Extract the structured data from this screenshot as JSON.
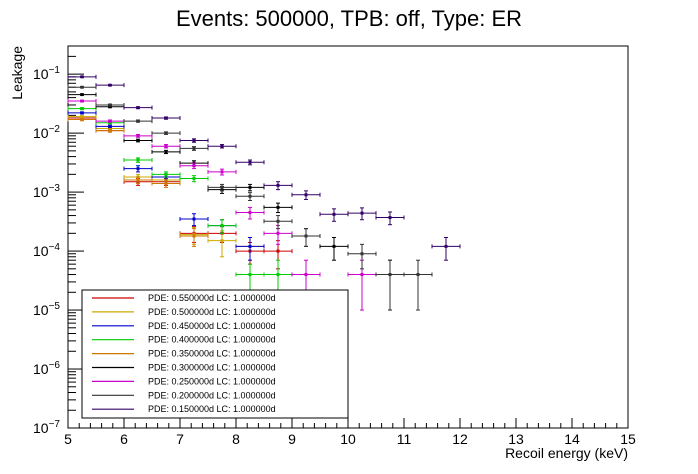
{
  "chart_data": {
    "type": "scatter",
    "title": "Events: 500000, TPB: off, Type: ER",
    "xlabel": "Recoil energy (keV)",
    "ylabel": "Leakage",
    "xlim": [
      5,
      15
    ],
    "ylim": [
      1e-07,
      0.3
    ],
    "yscale": "log",
    "x_ticks": [
      "5",
      "6",
      "7",
      "8",
      "9",
      "10",
      "11",
      "12",
      "13",
      "14",
      "15"
    ],
    "y_ticks": [
      {
        "base": "10",
        "exp": "−7",
        "value": 1e-07
      },
      {
        "base": "10",
        "exp": "−6",
        "value": 1e-06
      },
      {
        "base": "10",
        "exp": "−5",
        "value": 1e-05
      },
      {
        "base": "10",
        "exp": "−4",
        "value": 0.0001
      },
      {
        "base": "10",
        "exp": "−3",
        "value": 0.001
      },
      {
        "base": "10",
        "exp": "−2",
        "value": 0.01
      },
      {
        "base": "10",
        "exp": "−1",
        "value": 0.1
      }
    ],
    "grid": false,
    "legend_position": "bottom-left",
    "series": [
      {
        "name": "PDE: 0.550000d LC: 1.000000d",
        "color": "#cc0000",
        "points": [
          [
            5.25,
            0.018,
            0.0008
          ],
          [
            5.75,
            0.011,
            0.0006
          ],
          [
            6.25,
            0.0015,
            0.0002
          ],
          [
            6.75,
            0.0015,
            0.0002
          ],
          [
            7.25,
            0.0002,
            6e-05
          ],
          [
            7.75,
            0.0002,
            6e-05
          ],
          [
            8.25,
            0.0001,
            4e-05
          ],
          [
            8.75,
            0.0001,
            5e-05
          ]
        ]
      },
      {
        "name": "PDE: 0.500000d LC: 1.000000d",
        "color": "#ccaa00",
        "points": [
          [
            5.25,
            0.019,
            0.0008
          ],
          [
            5.75,
            0.012,
            0.0006
          ],
          [
            6.25,
            0.0018,
            0.0002
          ],
          [
            6.75,
            0.0016,
            0.0002
          ],
          [
            7.25,
            0.00019,
            6e-05
          ],
          [
            7.75,
            0.00015,
            7e-05
          ],
          [
            8.25,
            0.00012,
            5e-05
          ]
        ]
      },
      {
        "name": "PDE: 0.450000d LC: 1.000000d",
        "color": "#0000cc",
        "points": [
          [
            5.25,
            0.022,
            0.0009
          ],
          [
            5.75,
            0.013,
            0.0006
          ],
          [
            6.25,
            0.0025,
            0.0003
          ],
          [
            6.75,
            0.0018,
            0.0002
          ],
          [
            7.25,
            0.00035,
            8e-05
          ],
          [
            7.75,
            0.00027,
            7e-05
          ],
          [
            8.25,
            0.00012,
            5e-05
          ]
        ]
      },
      {
        "name": "PDE: 0.400000d LC: 1.000000d",
        "color": "#00cc00",
        "points": [
          [
            5.25,
            0.026,
            0.001
          ],
          [
            5.75,
            0.015,
            0.0007
          ],
          [
            6.25,
            0.0035,
            0.0003
          ],
          [
            6.75,
            0.002,
            0.0002
          ],
          [
            7.25,
            0.0017,
            0.0002
          ],
          [
            7.75,
            0.00027,
            7e-05
          ],
          [
            8.25,
            4e-05,
            2e-05
          ],
          [
            8.75,
            4e-05,
            3e-05
          ]
        ]
      },
      {
        "name": "PDE: 0.350000d LC: 1.000000d",
        "color": "#cc7700",
        "points": [
          [
            5.25,
            0.017,
            0.0008
          ],
          [
            5.75,
            0.011,
            0.0006
          ],
          [
            6.25,
            0.0016,
            0.0002
          ],
          [
            6.75,
            0.0014,
            0.0002
          ],
          [
            7.25,
            0.00018,
            6e-05
          ]
        ]
      },
      {
        "name": "PDE: 0.300000d LC: 1.000000d",
        "color": "#000000",
        "points": [
          [
            5.25,
            0.045,
            0.0012
          ],
          [
            5.75,
            0.028,
            0.001
          ],
          [
            6.25,
            0.0075,
            0.0004
          ],
          [
            6.75,
            0.0048,
            0.0003
          ],
          [
            7.25,
            0.0031,
            0.0003
          ],
          [
            7.75,
            0.0011,
            0.00015
          ],
          [
            8.25,
            0.0012,
            0.00015
          ],
          [
            8.75,
            0.00055,
            0.0001
          ],
          [
            9.25,
            0.00018,
            6e-05
          ],
          [
            9.75,
            0.00012,
            5e-05
          ],
          [
            10.75,
            4e-05,
            3e-05
          ]
        ]
      },
      {
        "name": "PDE: 0.250000d LC: 1.000000d",
        "color": "#cc00cc",
        "points": [
          [
            5.25,
            0.035,
            0.001
          ],
          [
            5.75,
            0.016,
            0.0007
          ],
          [
            6.25,
            0.009,
            0.0005
          ],
          [
            6.75,
            0.006,
            0.0004
          ],
          [
            7.25,
            0.0028,
            0.0003
          ],
          [
            7.75,
            0.0022,
            0.00025
          ],
          [
            8.25,
            0.00045,
            0.0001
          ],
          [
            8.75,
            0.0002,
            7e-05
          ],
          [
            9.25,
            4e-05,
            3e-05
          ],
          [
            10.25,
            4e-05,
            3e-05
          ]
        ]
      },
      {
        "name": "PDE: 0.200000d LC: 1.000000d",
        "color": "#333333",
        "points": [
          [
            5.25,
            0.06,
            0.0015
          ],
          [
            5.75,
            0.03,
            0.001
          ],
          [
            6.25,
            0.016,
            0.0007
          ],
          [
            6.75,
            0.01,
            0.0005
          ],
          [
            7.25,
            0.0055,
            0.0004
          ],
          [
            7.75,
            0.0012,
            0.00015
          ],
          [
            8.25,
            0.00085,
            0.00013
          ],
          [
            8.75,
            0.00032,
            8e-05
          ],
          [
            9.25,
            0.00018,
            6e-05
          ],
          [
            10.25,
            9e-05,
            4e-05
          ],
          [
            10.75,
            4e-05,
            3e-05
          ],
          [
            11.25,
            4e-05,
            3e-05
          ]
        ]
      },
      {
        "name": "PDE: 0.150000d LC: 1.000000d",
        "color": "#330066",
        "points": [
          [
            5.25,
            0.09,
            0.002
          ],
          [
            5.75,
            0.065,
            0.0015
          ],
          [
            6.25,
            0.027,
            0.001
          ],
          [
            6.75,
            0.018,
            0.0008
          ],
          [
            7.25,
            0.0075,
            0.0005
          ],
          [
            7.75,
            0.006,
            0.0004
          ],
          [
            8.25,
            0.0032,
            0.0003
          ],
          [
            8.75,
            0.0013,
            0.0002
          ],
          [
            9.25,
            0.0009,
            0.00015
          ],
          [
            9.75,
            0.00042,
            0.0001
          ],
          [
            10.25,
            0.00044,
            0.0001
          ],
          [
            10.75,
            0.00037,
            9e-05
          ],
          [
            11.75,
            0.00012,
            5e-05
          ]
        ]
      }
    ]
  }
}
